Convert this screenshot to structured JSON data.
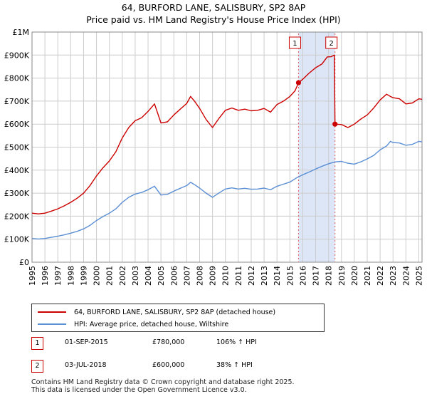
{
  "title_line1": "64, BURFORD LANE, SALISBURY, SP2 8AP",
  "title_line2": "Price paid vs. HM Land Registry's House Price Index (HPI)",
  "chart_data": {
    "type": "line",
    "title": "64, BURFORD LANE, SALISBURY, SP2 8AP",
    "subtitle": "Price paid vs. HM Land Registry's House Price Index (HPI)",
    "xlabel": "",
    "ylabel": "",
    "xlim": [
      1995.0,
      2025.25
    ],
    "ylim": [
      0,
      1000000
    ],
    "grid": true,
    "y_ticks": [
      {
        "value": 0,
        "label": "£0"
      },
      {
        "value": 100000,
        "label": "£100K"
      },
      {
        "value": 200000,
        "label": "£200K"
      },
      {
        "value": 300000,
        "label": "£300K"
      },
      {
        "value": 400000,
        "label": "£400K"
      },
      {
        "value": 500000,
        "label": "£500K"
      },
      {
        "value": 600000,
        "label": "£600K"
      },
      {
        "value": 700000,
        "label": "£700K"
      },
      {
        "value": 800000,
        "label": "£800K"
      },
      {
        "value": 900000,
        "label": "£900K"
      },
      {
        "value": 1000000,
        "label": "£1M"
      }
    ],
    "x_ticks": [
      "1995",
      "1996",
      "1997",
      "1998",
      "1999",
      "2000",
      "2001",
      "2002",
      "2003",
      "2004",
      "2005",
      "2006",
      "2007",
      "2008",
      "2009",
      "2010",
      "2011",
      "2012",
      "2013",
      "2014",
      "2015",
      "2016",
      "2017",
      "2018",
      "2019",
      "2020",
      "2021",
      "2022",
      "2023",
      "2024",
      "2025"
    ],
    "series": [
      {
        "name": "64, BURFORD LANE, SALISBURY, SP2 8AP (detached house)",
        "color": "#cc0000",
        "x": [
          1995.0,
          1995.5,
          1996.0,
          1996.5,
          1997.0,
          1997.5,
          1998.0,
          1998.5,
          1999.0,
          1999.5,
          2000.0,
          2000.5,
          2001.0,
          2001.5,
          2002.0,
          2002.5,
          2003.0,
          2003.5,
          2004.0,
          2004.5,
          2005.0,
          2005.5,
          2006.0,
          2006.5,
          2007.0,
          2007.3,
          2007.6,
          2008.0,
          2008.5,
          2009.0,
          2009.5,
          2010.0,
          2010.5,
          2011.0,
          2011.5,
          2012.0,
          2012.5,
          2013.0,
          2013.5,
          2014.0,
          2014.5,
          2015.0,
          2015.4,
          2015.67,
          2016.0,
          2016.5,
          2017.0,
          2017.5,
          2017.9,
          2018.2,
          2018.45,
          2018.5,
          2019.0,
          2019.5,
          2020.0,
          2020.5,
          2021.0,
          2021.5,
          2022.0,
          2022.5,
          2022.8,
          2023.0,
          2023.5,
          2024.0,
          2024.5,
          2025.0,
          2025.25
        ],
        "values": [
          213000,
          210000,
          213000,
          222000,
          232000,
          245000,
          260000,
          278000,
          300000,
          333000,
          375000,
          410000,
          440000,
          480000,
          540000,
          585000,
          615000,
          628000,
          655000,
          688000,
          605000,
          610000,
          640000,
          665000,
          690000,
          720000,
          700000,
          668000,
          620000,
          585000,
          625000,
          660000,
          670000,
          660000,
          665000,
          658000,
          660000,
          668000,
          652000,
          685000,
          700000,
          720000,
          745000,
          780000,
          795000,
          822000,
          845000,
          862000,
          892000,
          893000,
          900000,
          600000,
          598000,
          585000,
          600000,
          622000,
          640000,
          670000,
          705000,
          730000,
          720000,
          715000,
          710000,
          688000,
          692000,
          710000,
          708000
        ]
      },
      {
        "name": "HPI: Average price, detached house, Wiltshire",
        "color": "#5b8fd4",
        "x": [
          1995.0,
          1995.5,
          1996.0,
          1996.5,
          1997.0,
          1997.5,
          1998.0,
          1998.5,
          1999.0,
          1999.5,
          2000.0,
          2000.5,
          2001.0,
          2001.5,
          2002.0,
          2002.5,
          2003.0,
          2003.5,
          2004.0,
          2004.5,
          2005.0,
          2005.5,
          2006.0,
          2006.5,
          2007.0,
          2007.3,
          2007.6,
          2008.0,
          2008.5,
          2009.0,
          2009.5,
          2010.0,
          2010.5,
          2011.0,
          2011.5,
          2012.0,
          2012.5,
          2013.0,
          2013.5,
          2014.0,
          2014.5,
          2015.0,
          2015.5,
          2016.0,
          2016.5,
          2017.0,
          2017.5,
          2018.0,
          2018.5,
          2019.0,
          2019.5,
          2020.0,
          2020.5,
          2021.0,
          2021.5,
          2022.0,
          2022.5,
          2022.8,
          2023.0,
          2023.5,
          2024.0,
          2024.5,
          2025.0,
          2025.25
        ],
        "values": [
          103000,
          101000,
          103000,
          108000,
          113000,
          119000,
          126000,
          134000,
          145000,
          160000,
          181000,
          198000,
          213000,
          232000,
          260000,
          282000,
          296000,
          303000,
          315000,
          330000,
          292000,
          295000,
          309000,
          321000,
          333000,
          347000,
          337000,
          322000,
          300000,
          282000,
          301000,
          318000,
          323000,
          318000,
          321000,
          317000,
          318000,
          322000,
          315000,
          330000,
          339000,
          348000,
          366000,
          380000,
          392000,
          405000,
          417000,
          428000,
          436000,
          438000,
          430000,
          426000,
          436000,
          449000,
          464000,
          488000,
          505000,
          525000,
          520000,
          518000,
          508000,
          512000,
          525000,
          523000
        ]
      }
    ],
    "markers": [
      {
        "label": "1",
        "x": 2015.67,
        "value": 780000
      },
      {
        "label": "2",
        "x": 2018.5,
        "value": 600000
      }
    ]
  },
  "legend": {
    "items": [
      {
        "label": "64, BURFORD LANE, SALISBURY, SP2 8AP (detached house)",
        "color": "#cc0000"
      },
      {
        "label": "HPI: Average price, detached house, Wiltshire",
        "color": "#5b8fd4"
      }
    ]
  },
  "transactions": [
    {
      "num": "1",
      "date": "01-SEP-2015",
      "price": "£780,000",
      "hpi": "106% ↑ HPI"
    },
    {
      "num": "2",
      "date": "03-JUL-2018",
      "price": "£600,000",
      "hpi": "38% ↑ HPI"
    }
  ],
  "footer": {
    "line1": "Contains HM Land Registry data © Crown copyright and database right 2025.",
    "line2": "This data is licensed under the Open Government Licence v3.0."
  },
  "colors": {
    "price_line": "#cc0000",
    "hpi_line": "#5b8fd4",
    "highlight_band": "#dde6f7",
    "marker_line": "#e06060",
    "grid": "#cccccc"
  }
}
